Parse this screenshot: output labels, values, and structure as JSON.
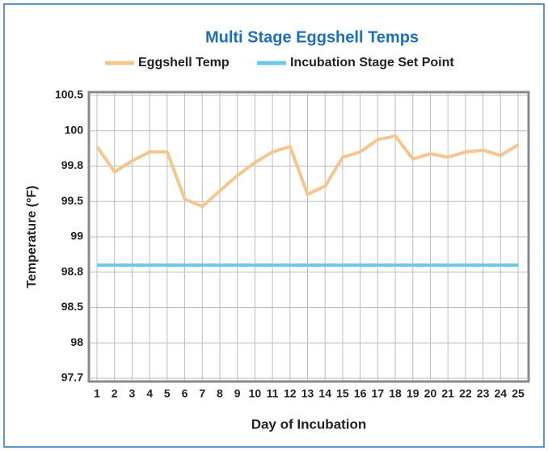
{
  "chart_data": {
    "type": "line",
    "title": "Multi Stage Eggshell Temps",
    "x_label": "Day of Incubation",
    "y_label": "Temperature (°F)",
    "categories": [
      "1",
      "2",
      "3",
      "4",
      "5",
      "6",
      "7",
      "8",
      "9",
      "10",
      "11",
      "12",
      "13",
      "14",
      "15",
      "16",
      "17",
      "18",
      "19",
      "20",
      "21",
      "22",
      "23",
      "24",
      "25"
    ],
    "series": [
      {
        "name": "Eggshell Temp",
        "color": "#f5c78e",
        "values": [
          99.91,
          99.75,
          99.83,
          99.88,
          99.88,
          99.52,
          99.43,
          99.59,
          99.72,
          99.82,
          99.88,
          99.91,
          99.56,
          99.63,
          99.85,
          99.88,
          99.95,
          99.97,
          99.84,
          99.87,
          99.85,
          99.88,
          99.89,
          99.86,
          99.92
        ]
      },
      {
        "name": "Incubation Stage Set Point",
        "color": "#6ec8ea",
        "values": [
          98.84,
          98.84,
          98.84,
          98.84,
          98.84,
          98.84,
          98.84,
          98.84,
          98.84,
          98.84,
          98.84,
          98.84,
          98.84,
          98.84,
          98.84,
          98.84,
          98.84,
          98.84,
          98.84,
          98.84,
          98.84,
          98.84,
          98.84,
          98.84,
          98.84
        ]
      }
    ],
    "ylim": [
      97.7,
      100.5
    ],
    "yticks": [
      100.5,
      100,
      99.8,
      99.5,
      99,
      98.8,
      98.5,
      98,
      97.7
    ],
    "grid": true,
    "legend": "top"
  }
}
